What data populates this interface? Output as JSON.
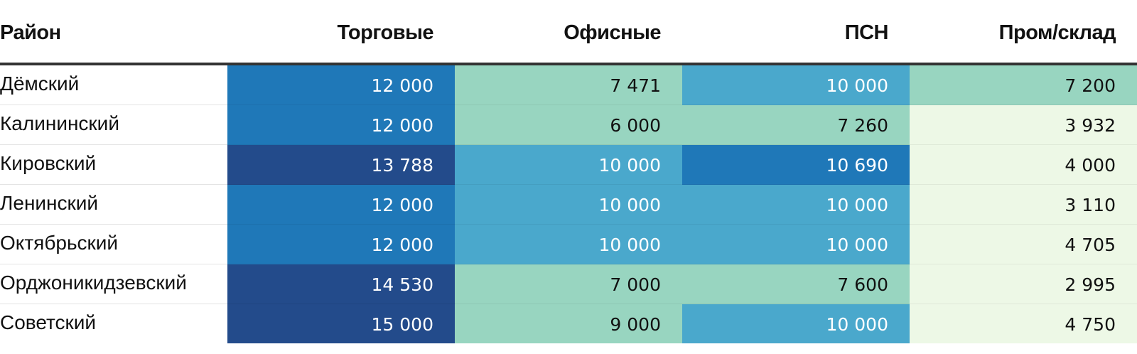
{
  "chart_data": {
    "type": "table",
    "columns": [
      "Район",
      "Торговые",
      "Офисные",
      "ПСН",
      "Пром/склад"
    ],
    "rows": [
      {
        "district": "Дёмский",
        "values": [
          "12 000",
          "7 471",
          "10 000",
          "7 200"
        ],
        "numeric": [
          12000,
          7471,
          10000,
          7200
        ]
      },
      {
        "district": "Калининский",
        "values": [
          "12 000",
          "6 000",
          "7 260",
          "3 932"
        ],
        "numeric": [
          12000,
          6000,
          7260,
          3932
        ]
      },
      {
        "district": "Кировский",
        "values": [
          "13 788",
          "10 000",
          "10 690",
          "4 000"
        ],
        "numeric": [
          13788,
          10000,
          10690,
          4000
        ]
      },
      {
        "district": "Ленинский",
        "values": [
          "12 000",
          "10 000",
          "10 000",
          "3 110"
        ],
        "numeric": [
          12000,
          10000,
          10000,
          3110
        ]
      },
      {
        "district": "Октябрьский",
        "values": [
          "12 000",
          "10 000",
          "10 000",
          "4 705"
        ],
        "numeric": [
          12000,
          10000,
          10000,
          4705
        ]
      },
      {
        "district": "Орджоникидзевский",
        "values": [
          "14 530",
          "7 000",
          "7 600",
          "2 995"
        ],
        "numeric": [
          14530,
          7000,
          7600,
          2995
        ]
      },
      {
        "district": "Советский",
        "values": [
          "15 000",
          "9 000",
          "10 000",
          "4 750"
        ],
        "numeric": [
          15000,
          9000,
          10000,
          4750
        ]
      }
    ],
    "color_scale": [
      {
        "min": 0,
        "max": 5000,
        "bg": "#edf8e6",
        "text": "#111111"
      },
      {
        "min": 5000,
        "max": 9500,
        "bg": "#98d5c0",
        "text": "#111111"
      },
      {
        "min": 9500,
        "max": 10500,
        "bg": "#4aa8cc",
        "text": "#ffffff"
      },
      {
        "min": 10500,
        "max": 13000,
        "bg": "#1f78b8",
        "text": "#ffffff"
      },
      {
        "min": 13000,
        "max": 100000,
        "bg": "#234b8b",
        "text": "#ffffff"
      }
    ]
  }
}
